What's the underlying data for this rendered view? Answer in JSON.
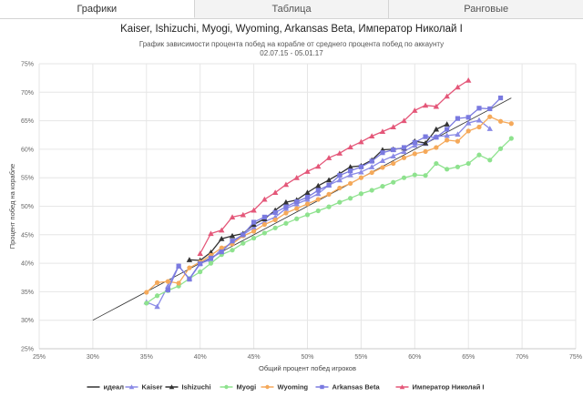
{
  "tabs": [
    {
      "label": "Графики",
      "active": true
    },
    {
      "label": "Таблица",
      "active": false
    },
    {
      "label": "Ранговые",
      "active": false
    }
  ],
  "chart_data": {
    "type": "line",
    "title": "Kaiser, Ishizuchi, Myogi, Wyoming, Arkansas Beta, Император Николай I",
    "subtitle_lines": [
      "График зависимости процента побед на корабле от среднего процента побед по аккаунту",
      "02.07.15 - 05.01.17"
    ],
    "xlabel": "Общий процент побед игроков",
    "ylabel": "Процент побед на корабле",
    "xlim": [
      25,
      75
    ],
    "ylim": [
      25,
      75
    ],
    "xticks": [
      "25%",
      "30%",
      "35%",
      "40%",
      "45%",
      "50%",
      "55%",
      "60%",
      "65%",
      "70%",
      "75%"
    ],
    "yticks": [
      "25%",
      "30%",
      "35%",
      "40%",
      "45%",
      "50%",
      "55%",
      "60%",
      "65%",
      "70%",
      "75%"
    ],
    "grid": true,
    "legend_position": "bottom",
    "series": [
      {
        "name": "идеал",
        "color": "#333333",
        "marker": "none",
        "points": [
          [
            30,
            30
          ],
          [
            69,
            69
          ]
        ]
      },
      {
        "name": "Kaiser",
        "color": "#8a8ae6",
        "marker": "triangle",
        "points": [
          [
            35,
            33.2
          ],
          [
            36,
            32.4
          ],
          [
            37,
            36
          ],
          [
            38,
            39.5
          ],
          [
            39,
            37.3
          ],
          [
            40,
            40
          ],
          [
            41,
            40.6
          ],
          [
            42,
            42.5
          ],
          [
            43,
            43.6
          ],
          [
            44,
            45
          ],
          [
            45,
            46.3
          ],
          [
            46,
            47.3
          ],
          [
            47,
            48.1
          ],
          [
            48,
            49.6
          ],
          [
            49,
            50.4
          ],
          [
            50,
            51.2
          ],
          [
            51,
            52.2
          ],
          [
            52,
            53.7
          ],
          [
            53,
            54.6
          ],
          [
            54,
            55.5
          ],
          [
            55,
            56
          ],
          [
            56,
            56.9
          ],
          [
            57,
            58
          ],
          [
            58,
            58.8
          ],
          [
            59,
            59.6
          ],
          [
            60,
            60.7
          ],
          [
            61,
            61
          ],
          [
            62,
            62.2
          ],
          [
            63,
            62.4
          ],
          [
            64,
            62.6
          ],
          [
            65,
            64.6
          ],
          [
            66,
            65.1
          ],
          [
            67,
            63.6
          ]
        ]
      },
      {
        "name": "Ishizuchi",
        "color": "#333333",
        "marker": "triangle",
        "points": [
          [
            39,
            40.6
          ],
          [
            40,
            40.5
          ],
          [
            41,
            41.9
          ],
          [
            42,
            44.3
          ],
          [
            43,
            44.8
          ],
          [
            44,
            45.2
          ],
          [
            45,
            46.8
          ],
          [
            46,
            47.8
          ],
          [
            47,
            49.3
          ],
          [
            48,
            50.7
          ],
          [
            49,
            51.1
          ],
          [
            50,
            52.4
          ],
          [
            51,
            53.6
          ],
          [
            52,
            54.6
          ],
          [
            53,
            55.7
          ],
          [
            54,
            56.9
          ],
          [
            55,
            57.1
          ],
          [
            56,
            58.1
          ],
          [
            57,
            59.9
          ],
          [
            58,
            60
          ],
          [
            59,
            60.2
          ],
          [
            60,
            61.4
          ],
          [
            61,
            61.1
          ],
          [
            62,
            63.5
          ],
          [
            63,
            64.4
          ]
        ]
      },
      {
        "name": "Myogi",
        "color": "#8ee28e",
        "marker": "circle",
        "points": [
          [
            35,
            33
          ],
          [
            36,
            34.3
          ],
          [
            37,
            35.2
          ],
          [
            38,
            36
          ],
          [
            39,
            37.3
          ],
          [
            40,
            38.5
          ],
          [
            41,
            40
          ],
          [
            42,
            41.5
          ],
          [
            43,
            42.3
          ],
          [
            44,
            43.5
          ],
          [
            45,
            44.4
          ],
          [
            46,
            45.3
          ],
          [
            47,
            46.2
          ],
          [
            48,
            47
          ],
          [
            49,
            47.8
          ],
          [
            50,
            48.5
          ],
          [
            51,
            49.2
          ],
          [
            52,
            49.9
          ],
          [
            53,
            50.7
          ],
          [
            54,
            51.4
          ],
          [
            55,
            52.2
          ],
          [
            56,
            52.8
          ],
          [
            57,
            53.5
          ],
          [
            58,
            54.2
          ],
          [
            59,
            55
          ],
          [
            60,
            55.5
          ],
          [
            61,
            55.4
          ],
          [
            62,
            57.5
          ],
          [
            63,
            56.5
          ],
          [
            64,
            56.9
          ],
          [
            65,
            57.5
          ],
          [
            66,
            59
          ],
          [
            67,
            58.1
          ],
          [
            68,
            60.1
          ],
          [
            69,
            61.9
          ]
        ]
      },
      {
        "name": "Wyoming",
        "color": "#f5a95a",
        "marker": "circle",
        "points": [
          [
            35,
            34.9
          ],
          [
            36,
            36.6
          ],
          [
            37,
            36.8
          ],
          [
            38,
            36.5
          ],
          [
            39,
            39.2
          ],
          [
            40,
            40.2
          ],
          [
            41,
            41.4
          ],
          [
            42,
            42.7
          ],
          [
            43,
            43.4
          ],
          [
            44,
            44.8
          ],
          [
            45,
            45.6
          ],
          [
            46,
            46.8
          ],
          [
            47,
            47.6
          ],
          [
            48,
            48.8
          ],
          [
            49,
            49.6
          ],
          [
            50,
            50.4
          ],
          [
            51,
            51.2
          ],
          [
            52,
            52.1
          ],
          [
            53,
            53.2
          ],
          [
            54,
            54
          ],
          [
            55,
            55
          ],
          [
            56,
            55.9
          ],
          [
            57,
            56.8
          ],
          [
            58,
            57.5
          ],
          [
            59,
            58.5
          ],
          [
            60,
            59.2
          ],
          [
            61,
            59.6
          ],
          [
            62,
            60.3
          ],
          [
            63,
            61.6
          ],
          [
            64,
            61.4
          ],
          [
            65,
            63.2
          ],
          [
            66,
            63.9
          ],
          [
            67,
            65.7
          ],
          [
            68,
            64.9
          ],
          [
            69,
            64.5
          ]
        ]
      },
      {
        "name": "Arkansas Beta",
        "color": "#7a7ae0",
        "marker": "square",
        "points": [
          [
            37,
            35.3
          ],
          [
            38,
            39.5
          ],
          [
            39,
            37.2
          ],
          [
            40,
            39.9
          ],
          [
            41,
            40.9
          ],
          [
            42,
            42
          ],
          [
            43,
            43.9
          ],
          [
            44,
            45
          ],
          [
            45,
            47.2
          ],
          [
            46,
            48.1
          ],
          [
            47,
            48.9
          ],
          [
            48,
            49.9
          ],
          [
            49,
            50.8
          ],
          [
            50,
            51.6
          ],
          [
            51,
            52.8
          ],
          [
            52,
            53.7
          ],
          [
            53,
            55.4
          ],
          [
            54,
            56.2
          ],
          [
            55,
            56.9
          ],
          [
            56,
            57.9
          ],
          [
            57,
            59.4
          ],
          [
            58,
            59.9
          ],
          [
            59,
            60.3
          ],
          [
            60,
            61.2
          ],
          [
            61,
            62.2
          ],
          [
            62,
            62.1
          ],
          [
            63,
            63.5
          ],
          [
            64,
            65.4
          ],
          [
            65,
            65.6
          ],
          [
            66,
            67.2
          ],
          [
            67,
            67.1
          ],
          [
            68,
            69
          ]
        ]
      },
      {
        "name": "Император Николай I",
        "color": "#e45779",
        "marker": "triangle",
        "points": [
          [
            40,
            41.7
          ],
          [
            41,
            45.2
          ],
          [
            42,
            45.8
          ],
          [
            43,
            48.1
          ],
          [
            44,
            48.5
          ],
          [
            45,
            49.3
          ],
          [
            46,
            51.2
          ],
          [
            47,
            52.4
          ],
          [
            48,
            53.8
          ],
          [
            49,
            55
          ],
          [
            50,
            56.1
          ],
          [
            51,
            57
          ],
          [
            52,
            58.5
          ],
          [
            53,
            59.3
          ],
          [
            54,
            60.4
          ],
          [
            55,
            61.3
          ],
          [
            56,
            62.3
          ],
          [
            57,
            63.1
          ],
          [
            58,
            63.9
          ],
          [
            59,
            65
          ],
          [
            60,
            66.8
          ],
          [
            61,
            67.7
          ],
          [
            62,
            67.5
          ],
          [
            63,
            69.3
          ],
          [
            64,
            70.9
          ],
          [
            65,
            72.1
          ]
        ]
      }
    ]
  }
}
